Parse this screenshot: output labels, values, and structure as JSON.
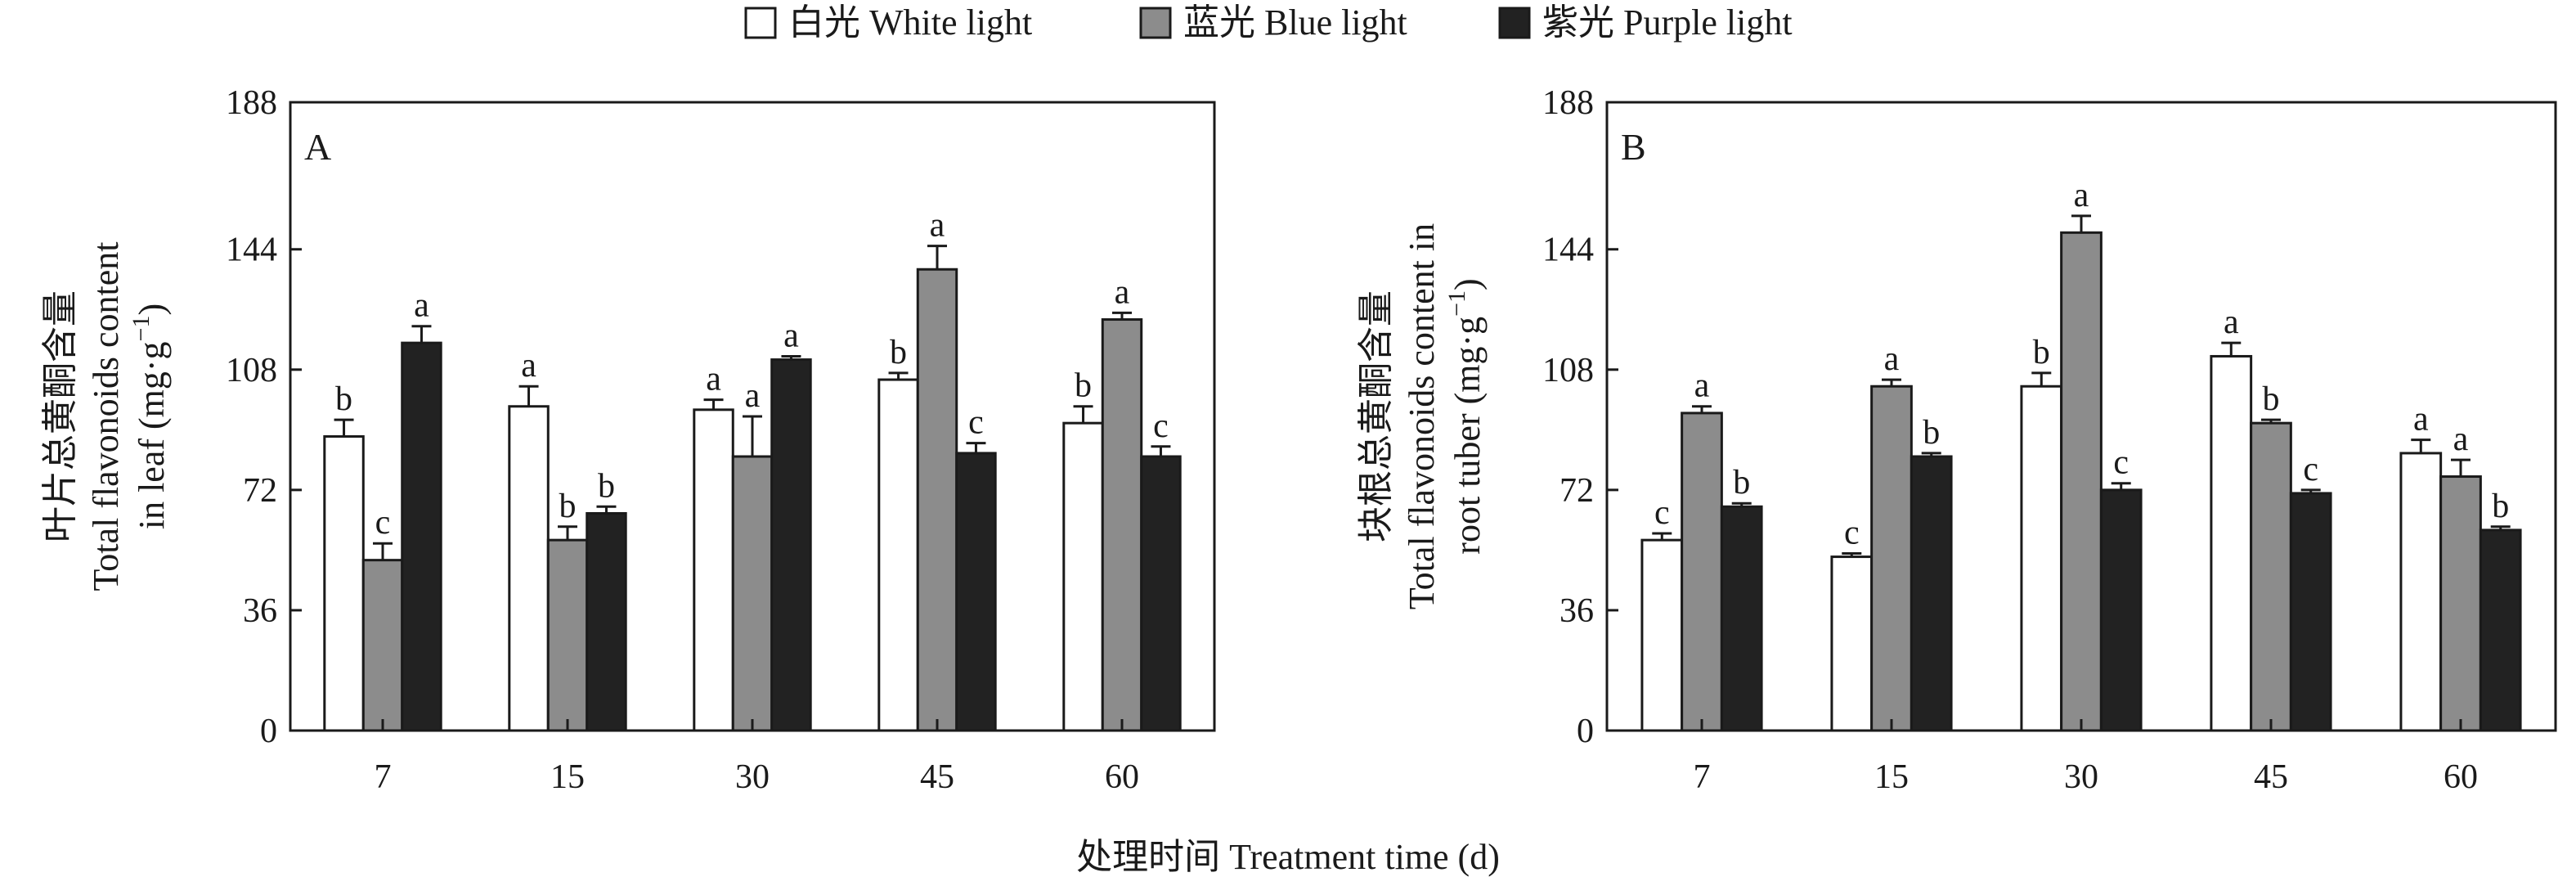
{
  "legend": {
    "items": [
      {
        "label": "白光 White light",
        "color": "#ffffff"
      },
      {
        "label": "蓝光 Blue light",
        "color": "#8c8c8c"
      },
      {
        "label": "紫光 Purple light",
        "color": "#222222"
      }
    ],
    "placement": "top-center"
  },
  "x_axis_label": "处理时间 Treatment time (d)",
  "chart_data": [
    {
      "type": "bar",
      "panel": "A",
      "categories": [
        "7",
        "15",
        "30",
        "45",
        "60"
      ],
      "ylabel_line1": "叶片总黄酮含量",
      "ylabel_line2": "Total flavonoids content",
      "ylabel_line3_main": "in leaf (mg·g",
      "ylabel_line3_sup": "−1",
      "ylabel_line3_end": ")",
      "ylim": [
        0,
        188
      ],
      "yticks": [
        "0",
        "36",
        "72",
        "108",
        "144",
        "188"
      ],
      "series": [
        {
          "name": "白光 White light",
          "values": [
            88,
            97,
            96,
            105,
            92
          ],
          "errors": [
            5,
            6,
            3,
            2,
            5
          ],
          "letters": [
            "b",
            "a",
            "a",
            "b",
            "b"
          ]
        },
        {
          "name": "蓝光 Blue light",
          "values": [
            51,
            57,
            82,
            138,
            123
          ],
          "errors": [
            5,
            4,
            12,
            7,
            2
          ],
          "letters": [
            "c",
            "b",
            "a",
            "a",
            "a"
          ]
        },
        {
          "name": "紫光 Purple light",
          "values": [
            116,
            65,
            111,
            83,
            82
          ],
          "errors": [
            5,
            2,
            1,
            3,
            3
          ],
          "letters": [
            "a",
            "b",
            "a",
            "c",
            "c"
          ]
        }
      ]
    },
    {
      "type": "bar",
      "panel": "B",
      "categories": [
        "7",
        "15",
        "30",
        "45",
        "60"
      ],
      "ylabel_line1": "块根总黄酮含量",
      "ylabel_line2": "Total flavonoids content in",
      "ylabel_line3_main": "root tuber (mg·g",
      "ylabel_line3_sup": "−1",
      "ylabel_line3_end": ")",
      "ylim": [
        0,
        188
      ],
      "yticks": [
        "0",
        "36",
        "72",
        "108",
        "144",
        "188"
      ],
      "series": [
        {
          "name": "白光 White light",
          "values": [
            57,
            52,
            103,
            112,
            83
          ],
          "errors": [
            2,
            1,
            4,
            4,
            4
          ],
          "letters": [
            "c",
            "c",
            "b",
            "a",
            "a"
          ]
        },
        {
          "name": "蓝光 Blue light",
          "values": [
            95,
            103,
            149,
            92,
            76
          ],
          "errors": [
            2,
            2,
            5,
            1,
            5
          ],
          "letters": [
            "a",
            "a",
            "a",
            "b",
            "a"
          ]
        },
        {
          "name": "紫光 Purple light",
          "values": [
            67,
            82,
            72,
            71,
            60
          ],
          "errors": [
            1,
            1,
            2,
            1,
            1
          ],
          "letters": [
            "b",
            "b",
            "c",
            "c",
            "b"
          ]
        }
      ]
    }
  ]
}
